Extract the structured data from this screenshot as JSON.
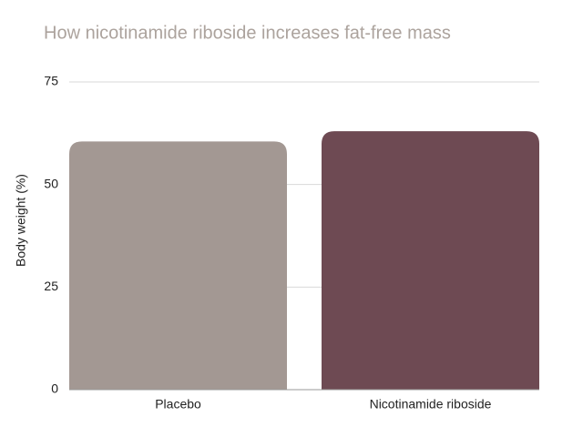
{
  "chart_data": {
    "type": "bar",
    "title": "How nicotinamide riboside increases fat-free mass",
    "y_label": "Body weight (%)",
    "categories": [
      "Placebo",
      "Nicotinamide riboside"
    ],
    "values": [
      60.5,
      63
    ],
    "colors": [
      "#a39893",
      "#6e4a53"
    ],
    "ylim": [
      0,
      75
    ],
    "yticks": [
      0,
      25,
      50,
      75
    ],
    "grid": true
  }
}
